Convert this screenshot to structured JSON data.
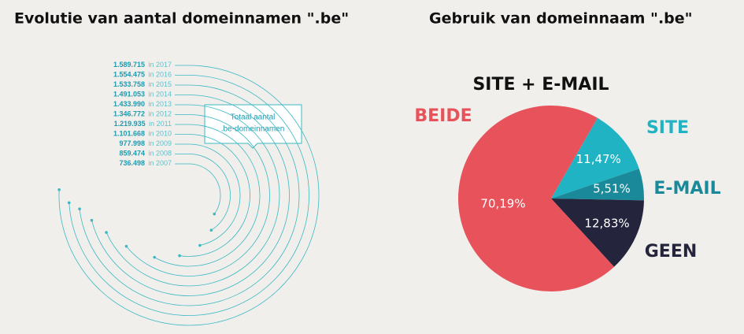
{
  "chart_data": [
    {
      "type": "radial-bar",
      "title": "Evolutie van aantal domeinnamen \".be\"",
      "annotation": [
        "Totaal aantal",
        ".be-domeinnamen"
      ],
      "categories": [
        "in 2007",
        "in 2008",
        "in 2009",
        "in 2010",
        "in 2011",
        "in 2012",
        "in 2013",
        "in 2014",
        "in 2015",
        "in 2016",
        "in 2017"
      ],
      "values": [
        736498,
        859474,
        977998,
        1101668,
        1219935,
        1346772,
        1433990,
        1491053,
        1533758,
        1554475,
        1589715
      ],
      "value_labels": [
        "736.498",
        "859.474",
        "977.998",
        "1.101.668",
        "1.219.935",
        "1.346.772",
        "1.433.990",
        "1.491.053",
        "1.533.758",
        "1.554.475",
        "1.589.715"
      ],
      "anglelim": [
        0,
        2100000
      ],
      "color": "#3bb8c3"
    },
    {
      "type": "pie",
      "title": "Gebruik van domeinnaam \".be\"",
      "annotation": "SITE + E-MAIL",
      "categories": [
        "SITE",
        "E-MAIL",
        "GEEN",
        "BEIDE"
      ],
      "values": [
        11.47,
        5.51,
        12.83,
        70.19
      ],
      "value_labels": [
        "11,47%",
        "5,51%",
        "12,83%",
        "70,19%"
      ],
      "colors": [
        "#1fb3c4",
        "#1a8a9a",
        "#24253c",
        "#e8525b"
      ]
    }
  ]
}
